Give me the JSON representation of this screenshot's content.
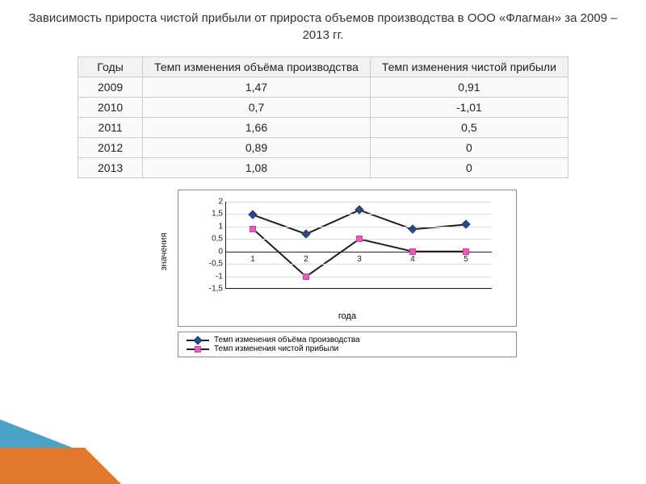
{
  "title": "Зависимость прироста чистой прибыли от прироста объемов производства в ООО «Флагман» за 2009 – 2013 гг.",
  "table": {
    "headers": {
      "col1": "Годы",
      "col2": "Темп изменения объёма производства",
      "col3": "Темп изменения чистой прибыли"
    },
    "rows": [
      {
        "year": "2009",
        "v1": "1,47",
        "v2": "0,91"
      },
      {
        "year": "2010",
        "v1": "0,7",
        "v2": "-1,01"
      },
      {
        "year": "2011",
        "v1": "1,66",
        "v2": "0,5"
      },
      {
        "year": "2012",
        "v1": "0,89",
        "v2": "0"
      },
      {
        "year": "2013",
        "v1": "1,08",
        "v2": "0"
      }
    ]
  },
  "chart": {
    "type": "line",
    "y_label": "значения",
    "x_label": "года",
    "ylim": [
      -1.5,
      2
    ],
    "ytick_step": 0.5,
    "y_ticks": [
      "-1,5",
      "-1",
      "-0,5",
      "0",
      "0,5",
      "1",
      "1,5",
      "2"
    ],
    "x_ticks": [
      "1",
      "2",
      "3",
      "4",
      "5"
    ],
    "grid_color": "#dddddd",
    "background_color": "#ffffff",
    "border_color": "#888888",
    "label_fontsize": 10,
    "series": [
      {
        "name": "Темп изменения объёма производства",
        "marker": "diamond",
        "color": "#1f3f78",
        "line_color": "#1f1f1f",
        "fill": "#2a4a8a",
        "values": [
          1.47,
          0.7,
          1.66,
          0.89,
          1.08
        ]
      },
      {
        "name": "Темп изменения чистой прибыли",
        "marker": "square",
        "color": "#d63aa0",
        "line_color": "#1f1f1f",
        "fill": "#e85cc0",
        "values": [
          0.91,
          -1.01,
          0.5,
          0,
          0
        ]
      }
    ]
  },
  "decoration": {
    "top_color": "#4aa3c7",
    "bottom_color": "#e07a2a"
  }
}
